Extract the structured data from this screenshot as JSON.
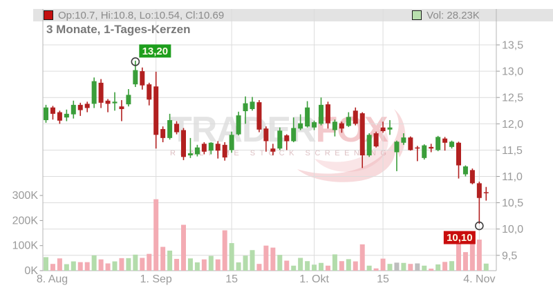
{
  "header": {
    "ohlc_label": "Op:10.7, Hi:10.8, Lo:10.54, Cl:10.69",
    "vol_label": "Vol: 28.23K",
    "title": "3 Monate, 1-Tages-Kerzen"
  },
  "watermark": {
    "part1": "TRADER",
    "part2": "FOX",
    "subtitle": "REALTIME STOCK SCREENING"
  },
  "annotations": {
    "high": {
      "text": "13,20",
      "value": 13.2,
      "index": 13
    },
    "low": {
      "text": "10,10",
      "value": 10.1,
      "index": 63
    }
  },
  "axes": {
    "price_ticks": [
      {
        "label": "13,5",
        "value": 13.5
      },
      {
        "label": "13,0",
        "value": 13.0
      },
      {
        "label": "12,5",
        "value": 12.5
      },
      {
        "label": "12,0",
        "value": 12.0
      },
      {
        "label": "11,5",
        "value": 11.5
      },
      {
        "label": "11,0",
        "value": 11.0
      },
      {
        "label": "10,5",
        "value": 10.5
      },
      {
        "label": "10,0",
        "value": 10.0
      },
      {
        "label": "9,5",
        "value": 9.5
      }
    ],
    "volume_ticks": [
      {
        "label": "300K",
        "value": 300
      },
      {
        "label": "200K",
        "value": 200
      },
      {
        "label": "100K",
        "value": 100
      },
      {
        "label": "0K",
        "value": 0
      }
    ],
    "x_ticks": [
      {
        "label": "8. Aug",
        "index": 0,
        "grid": false
      },
      {
        "label": "1. Sep",
        "index": 16,
        "grid": true
      },
      {
        "label": "15",
        "index": 27,
        "grid": true
      },
      {
        "label": "1. Okt",
        "index": 39,
        "grid": true
      },
      {
        "label": "15",
        "index": 49,
        "grid": true
      },
      {
        "label": "4. Nov",
        "index": 63,
        "grid": true
      }
    ]
  },
  "chart_data": {
    "type": "candlestick_with_volume",
    "price_range": [
      9.5,
      13.5
    ],
    "volume_range_k": [
      0,
      300
    ],
    "series_note": "candles are [open, high, low, close, volume_in_K]",
    "candles": [
      [
        12.07,
        12.36,
        12.02,
        12.31,
        54
      ],
      [
        12.31,
        12.34,
        12.08,
        12.19,
        27
      ],
      [
        12.22,
        12.25,
        12.0,
        12.06,
        49
      ],
      [
        12.12,
        12.27,
        12.05,
        12.19,
        26
      ],
      [
        12.18,
        12.44,
        12.1,
        12.36,
        37
      ],
      [
        12.36,
        12.4,
        12.15,
        12.26,
        34
      ],
      [
        12.38,
        12.42,
        12.22,
        12.3,
        34
      ],
      [
        12.38,
        12.88,
        12.3,
        12.81,
        61
      ],
      [
        12.78,
        12.85,
        12.3,
        12.4,
        45
      ],
      [
        12.44,
        12.47,
        12.22,
        12.38,
        29
      ],
      [
        12.39,
        12.6,
        12.25,
        12.42,
        37
      ],
      [
        12.33,
        12.45,
        12.05,
        12.28,
        50
      ],
      [
        12.37,
        12.66,
        12.33,
        12.55,
        50
      ],
      [
        12.75,
        13.2,
        12.7,
        13.02,
        64
      ],
      [
        13.0,
        13.07,
        12.65,
        12.73,
        51
      ],
      [
        12.75,
        12.78,
        12.35,
        12.46,
        67
      ],
      [
        12.71,
        12.99,
        11.53,
        11.79,
        285
      ],
      [
        11.9,
        11.95,
        11.65,
        11.73,
        95
      ],
      [
        11.73,
        12.19,
        11.7,
        12.07,
        80
      ],
      [
        12.0,
        12.05,
        11.8,
        11.84,
        47
      ],
      [
        11.88,
        11.92,
        11.31,
        11.37,
        183
      ],
      [
        11.4,
        11.73,
        11.35,
        11.44,
        49
      ],
      [
        11.42,
        11.6,
        11.38,
        11.55,
        33
      ],
      [
        11.62,
        11.65,
        11.42,
        11.47,
        45
      ],
      [
        11.49,
        11.65,
        11.42,
        11.64,
        59
      ],
      [
        11.62,
        11.67,
        11.34,
        11.49,
        45
      ],
      [
        11.6,
        11.65,
        11.3,
        11.36,
        161
      ],
      [
        11.5,
        11.85,
        11.45,
        11.79,
        110
      ],
      [
        11.8,
        12.23,
        11.78,
        12.16,
        33
      ],
      [
        12.24,
        12.52,
        12.0,
        12.39,
        60
      ],
      [
        12.28,
        12.51,
        12.25,
        12.42,
        82
      ],
      [
        12.41,
        12.45,
        11.84,
        11.89,
        27
      ],
      [
        11.91,
        11.95,
        11.47,
        11.67,
        100
      ],
      [
        11.53,
        11.62,
        11.4,
        11.47,
        92
      ],
      [
        11.53,
        11.93,
        11.5,
        11.87,
        63
      ],
      [
        11.78,
        11.8,
        11.5,
        11.67,
        40
      ],
      [
        11.67,
        12.12,
        11.65,
        11.92,
        20
      ],
      [
        11.91,
        12.18,
        11.88,
        12.01,
        51
      ],
      [
        11.95,
        12.43,
        11.93,
        12.31,
        38
      ],
      [
        11.93,
        12.06,
        11.88,
        12.03,
        24
      ],
      [
        12.0,
        12.5,
        11.97,
        12.36,
        31
      ],
      [
        12.37,
        12.42,
        11.91,
        12.01,
        20
      ],
      [
        11.88,
        12.08,
        11.76,
        12.04,
        65
      ],
      [
        12.01,
        12.04,
        11.83,
        11.91,
        38
      ],
      [
        11.96,
        12.22,
        11.94,
        12.13,
        46
      ],
      [
        12.25,
        12.31,
        11.97,
        12.0,
        37
      ],
      [
        12.2,
        12.22,
        11.16,
        11.4,
        105
      ],
      [
        11.4,
        11.82,
        11.37,
        11.79,
        20
      ],
      [
        11.82,
        11.85,
        11.55,
        11.57,
        9
      ],
      [
        11.93,
        12.04,
        11.83,
        11.86,
        48
      ],
      [
        11.89,
        12.07,
        11.79,
        11.93,
        27
      ],
      [
        11.46,
        11.68,
        11.1,
        11.66,
        32
      ],
      [
        11.64,
        11.82,
        11.6,
        11.74,
        31
      ],
      [
        11.74,
        11.76,
        11.49,
        11.5,
        27
      ],
      [
        11.55,
        11.58,
        11.29,
        11.53,
        29
      ],
      [
        11.35,
        11.61,
        11.32,
        11.59,
        20
      ],
      [
        11.56,
        11.62,
        11.46,
        11.53,
        8
      ],
      [
        11.5,
        11.77,
        11.48,
        11.75,
        25
      ],
      [
        11.72,
        11.75,
        11.49,
        11.64,
        35
      ],
      [
        11.56,
        11.68,
        11.53,
        11.66,
        38
      ],
      [
        11.64,
        11.66,
        10.96,
        11.21,
        118
      ],
      [
        11.04,
        11.21,
        11.0,
        11.19,
        74
      ],
      [
        11.12,
        11.15,
        10.85,
        10.87,
        118
      ],
      [
        10.87,
        10.9,
        10.1,
        10.59,
        124
      ],
      [
        10.7,
        10.8,
        10.54,
        10.69,
        28.23
      ]
    ],
    "volume_color_overrides": {
      "51": "neutral",
      "54": "neutral",
      "61": "down",
      "64": "up"
    },
    "colors": {
      "up": "#3a9e3a",
      "down": "#b22020",
      "vol_up": "#b3dcab",
      "vol_down": "#f3abb3",
      "vol_neutral": "#bdbdbd",
      "grid": "#dcdcdc",
      "axis": "#b5b5b5",
      "tick_label": "#9a9a9a",
      "annotation_high_bg": "#1d9e1d",
      "annotation_low_bg": "#c90d0d",
      "annotation_text": "#fffde8",
      "marker_stroke": "#3c3c3c"
    }
  }
}
